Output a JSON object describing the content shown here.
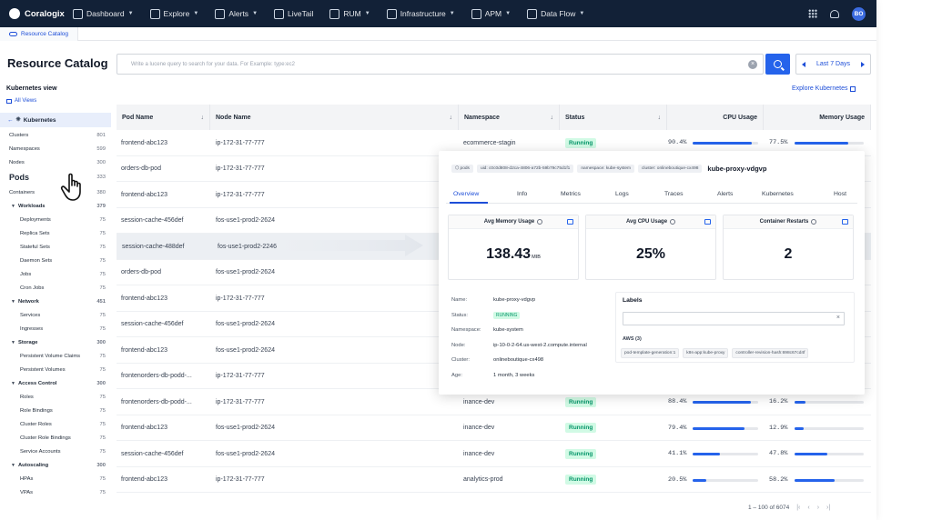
{
  "nav": {
    "brand": "Coralogix",
    "items": [
      {
        "label": "Dashboard",
        "icon": "dashboard-icon",
        "dropdown": true
      },
      {
        "label": "Explore",
        "icon": "explore-icon",
        "dropdown": true
      },
      {
        "label": "Alerts",
        "icon": "bell-icon",
        "dropdown": true
      },
      {
        "label": "LiveTail",
        "icon": "play-icon",
        "dropdown": false
      },
      {
        "label": "RUM",
        "icon": "rum-icon",
        "dropdown": true
      },
      {
        "label": "Infrastructure",
        "icon": "server-icon",
        "dropdown": true
      },
      {
        "label": "APM",
        "icon": "gauge-icon",
        "dropdown": true
      },
      {
        "label": "Data Flow",
        "icon": "dataflow-icon",
        "dropdown": true
      }
    ],
    "avatar_initials": "BO"
  },
  "tab": {
    "label": "Resource Catalog"
  },
  "page": {
    "title": "Resource Catalog",
    "search_placeholder": "Write a lucene query to search for your data. For Example: type:ec2",
    "date_range": "Last 7 Days",
    "explore_link": "Explore Kubernetes"
  },
  "sidebar": {
    "view_title": "Kubernetes view",
    "all_views": "All Views",
    "root": "Kubernetes",
    "items": [
      {
        "label": "Clusters",
        "count": "801",
        "level": 0
      },
      {
        "label": "Namespaces",
        "count": "599",
        "level": 0
      },
      {
        "label": "Nodes",
        "count": "300",
        "level": 0
      },
      {
        "label": "Pods",
        "count": "333",
        "level": 0,
        "selected": true
      },
      {
        "label": "Containers",
        "count": "380",
        "level": 0
      },
      {
        "label": "Workloads",
        "count": "379",
        "level": 1
      },
      {
        "label": "Deployments",
        "count": "75",
        "level": 2
      },
      {
        "label": "Replica Sets",
        "count": "75",
        "level": 2
      },
      {
        "label": "Stateful Sets",
        "count": "75",
        "level": 2
      },
      {
        "label": "Daemon Sets",
        "count": "75",
        "level": 2
      },
      {
        "label": "Jobs",
        "count": "75",
        "level": 2
      },
      {
        "label": "Cron Jobs",
        "count": "75",
        "level": 2
      },
      {
        "label": "Network",
        "count": "451",
        "level": 1
      },
      {
        "label": "Services",
        "count": "75",
        "level": 2
      },
      {
        "label": "Ingresses",
        "count": "75",
        "level": 2
      },
      {
        "label": "Storage",
        "count": "300",
        "level": 1
      },
      {
        "label": "Persistent Volume Claims",
        "count": "75",
        "level": 2
      },
      {
        "label": "Persistent Volumes",
        "count": "75",
        "level": 2
      },
      {
        "label": "Access Control",
        "count": "300",
        "level": 1
      },
      {
        "label": "Roles",
        "count": "75",
        "level": 2
      },
      {
        "label": "Role Bindings",
        "count": "75",
        "level": 2
      },
      {
        "label": "Cluster Roles",
        "count": "75",
        "level": 2
      },
      {
        "label": "Cluster Role Bindings",
        "count": "75",
        "level": 2
      },
      {
        "label": "Service Accounts",
        "count": "75",
        "level": 2
      },
      {
        "label": "Autoscaling",
        "count": "300",
        "level": 1
      },
      {
        "label": "HPAs",
        "count": "75",
        "level": 2
      },
      {
        "label": "VPAs",
        "count": "75",
        "level": 2
      }
    ]
  },
  "table": {
    "columns": [
      "Pod Name",
      "Node Name",
      "Namespace",
      "Status",
      "CPU Usage",
      "Memory Usage"
    ],
    "rows": [
      {
        "pod": "frontend-abc123",
        "node": "ip-172-31-77-777",
        "namespace": "ecommerce-stagin",
        "status": "Running",
        "cpu": "90.4%",
        "cpu_frac": 0.904,
        "mem": "77.5%",
        "mem_frac": 0.775
      },
      {
        "pod": "orders-db-pod",
        "node": "ip-172-31-77-777",
        "namespace": "",
        "status": "",
        "cpu": "",
        "mem": ""
      },
      {
        "pod": "frontend-abc123",
        "node": "ip-172-31-77-777",
        "namespace": "",
        "status": "",
        "cpu": "",
        "mem": ""
      },
      {
        "pod": "session-cache-456def",
        "node": "fos-use1-prod2-2624",
        "namespace": "",
        "status": "",
        "cpu": "",
        "mem": ""
      },
      {
        "pod": "session-cache-488def",
        "node": "fos-use1-prod2-2246",
        "namespace": "",
        "status": "",
        "cpu": "",
        "mem": "",
        "highlight": true
      },
      {
        "pod": "orders-db-pod",
        "node": "fos-use1-prod2-2624",
        "namespace": "",
        "status": "",
        "cpu": "",
        "mem": ""
      },
      {
        "pod": "frontend-abc123",
        "node": "ip-172-31-77-777",
        "namespace": "",
        "status": "",
        "cpu": "",
        "mem": ""
      },
      {
        "pod": "session-cache-456def",
        "node": "fos-use1-prod2-2624",
        "namespace": "",
        "status": "",
        "cpu": "",
        "mem": ""
      },
      {
        "pod": "frontend-abc123",
        "node": "fos-use1-prod2-2624",
        "namespace": "",
        "status": "",
        "cpu": "",
        "mem": ""
      },
      {
        "pod": "frontenorders-db-podd-...",
        "node": "ip-172-31-77-777",
        "namespace": "",
        "status": "",
        "cpu": "",
        "mem": ""
      },
      {
        "pod": "frontenorders-db-podd-...",
        "node": "ip-172-31-77-777",
        "namespace": "inance-dev",
        "status": "Running",
        "cpu": "88.4%",
        "cpu_frac": 0.884,
        "mem": "16.2%",
        "mem_frac": 0.162
      },
      {
        "pod": "frontend-abc123",
        "node": "fos-use1-prod2-2624",
        "namespace": "inance-dev",
        "status": "Running",
        "cpu": "79.4%",
        "cpu_frac": 0.794,
        "mem": "12.9%",
        "mem_frac": 0.129
      },
      {
        "pod": "session-cache-456def",
        "node": "fos-use1-prod2-2624",
        "namespace": "inance-dev",
        "status": "Running",
        "cpu": "41.1%",
        "cpu_frac": 0.411,
        "mem": "47.8%",
        "mem_frac": 0.478
      },
      {
        "pod": "frontend-abc123",
        "node": "ip-172-31-77-777",
        "namespace": "analytics-prod",
        "status": "Running",
        "cpu": "20.5%",
        "cpu_frac": 0.205,
        "mem": "58.2%",
        "mem_frac": 0.582
      }
    ],
    "pagination": "1 – 100 of 6074"
  },
  "panel": {
    "chips": [
      "pods",
      "uid: c0c0d808-d2ca-4806-a72b-59b79c75d1f1",
      "namespace: kube-system",
      "cluster: onlineboutique-cx498"
    ],
    "pod_name": "kube-proxy-vdgvp",
    "tabs": [
      "Overview",
      "Info",
      "Metrics",
      "Logs",
      "Traces",
      "Alerts",
      "Kubernetes",
      "Host"
    ],
    "cards": [
      {
        "title": "Avg Memory Usage",
        "value": "138.43",
        "unit": "MIB"
      },
      {
        "title": "Avg CPU Usage",
        "value": "25%",
        "unit": ""
      },
      {
        "title": "Container Restarts",
        "value": "2",
        "unit": ""
      }
    ],
    "props": [
      {
        "key": "Name:",
        "value": "kube-proxy-vdgvp"
      },
      {
        "key": "Status:",
        "value": "RUNNING",
        "badge": true
      },
      {
        "key": "Namespace:",
        "value": "kube-system"
      },
      {
        "key": "Node:",
        "value": "ip-10-0-2-64.us-west-2.compute.internal"
      },
      {
        "key": "Cluster:",
        "value": "onlineboutique-cx498"
      },
      {
        "key": "Age:",
        "value": "1 month, 3 weeks"
      }
    ],
    "labels_title": "Labels",
    "aws_title": "AWS (3)",
    "labels": [
      "pod-template-generation:1",
      "k8s-app:kube-proxy",
      "controller-revision-hash:698c67cd4f"
    ]
  },
  "colors": {
    "nav_bg": "#122137",
    "accent": "#2563eb",
    "running_bg": "#d1fae5",
    "running_fg": "#059669"
  }
}
